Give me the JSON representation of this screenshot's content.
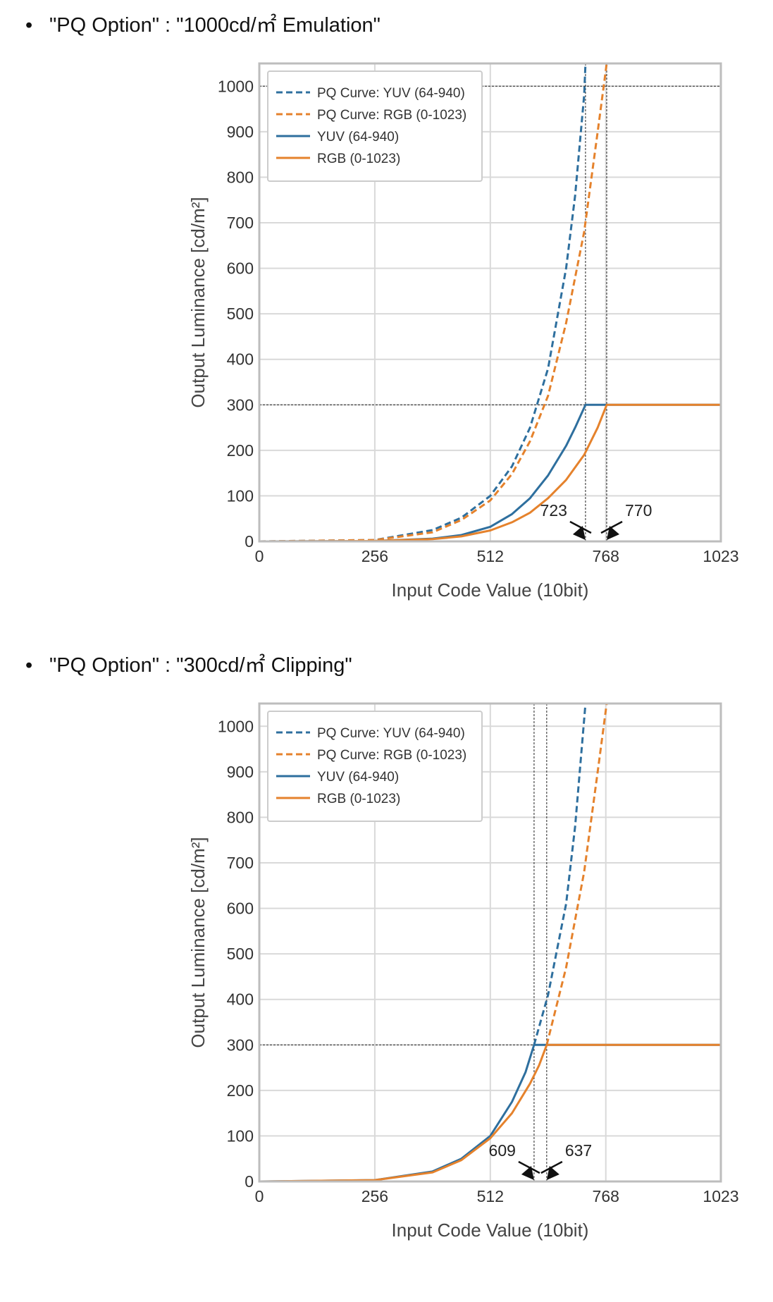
{
  "sections": [
    {
      "bullet": "•",
      "heading": "\"PQ Option\" : \"1000cd/㎡ Emulation\"",
      "chart_data": {
        "type": "line",
        "xlabel": "Input Code Value (10bit)",
        "ylabel": "Output Luminance [cd/m²]",
        "xlim": [
          0,
          1023
        ],
        "ylim": [
          0,
          1050
        ],
        "xticks": [
          0,
          256,
          512,
          768,
          1023
        ],
        "yticks": [
          0,
          100,
          200,
          300,
          400,
          500,
          600,
          700,
          800,
          900,
          1000
        ],
        "grid": true,
        "legend": "top-left",
        "series": [
          {
            "name": "PQ Curve: YUV (64-940)",
            "style": "dashed",
            "color": "#2e6f9e",
            "x": [
              0,
              256,
              384,
              448,
              512,
              560,
              600,
              640,
              680,
              700,
              720,
              723
            ],
            "y": [
              0,
              3,
              25,
              52,
              100,
              165,
              250,
              380,
              600,
              760,
              980,
              1050
            ]
          },
          {
            "name": "PQ Curve: RGB (0-1023)",
            "style": "dashed",
            "color": "#e5822c",
            "x": [
              0,
              256,
              384,
              448,
              512,
              560,
              600,
              640,
              680,
              720,
              750,
              770
            ],
            "y": [
              0,
              3,
              20,
              47,
              90,
              148,
              220,
              320,
              480,
              680,
              900,
              1050
            ]
          },
          {
            "name": "YUV (64-940)",
            "style": "solid",
            "color": "#2e6f9e",
            "x": [
              0,
              256,
              384,
              448,
              512,
              560,
              600,
              640,
              680,
              700,
              723,
              770,
              1023
            ],
            "y": [
              0,
              1,
              6,
              14,
              32,
              60,
              95,
              145,
              210,
              250,
              300,
              300,
              300
            ]
          },
          {
            "name": "RGB (0-1023)",
            "style": "solid",
            "color": "#e5822c",
            "x": [
              0,
              256,
              384,
              448,
              512,
              560,
              600,
              640,
              680,
              720,
              750,
              770,
              1023
            ],
            "y": [
              0,
              1,
              5,
              11,
              24,
              42,
              63,
              95,
              135,
              190,
              250,
              300,
              300
            ]
          }
        ],
        "reference_lines": {
          "h": [
            1000,
            300
          ],
          "v": [
            723,
            770
          ]
        },
        "annotations": [
          {
            "text": "723",
            "x": 723
          },
          {
            "text": "770",
            "x": 770
          }
        ]
      }
    },
    {
      "bullet": "•",
      "heading": "\"PQ Option\" : \"300cd/㎡ Clipping\"",
      "chart_data": {
        "type": "line",
        "xlabel": "Input Code Value (10bit)",
        "ylabel": "Output Luminance [cd/m²]",
        "xlim": [
          0,
          1023
        ],
        "ylim": [
          0,
          1050
        ],
        "xticks": [
          0,
          256,
          512,
          768,
          1023
        ],
        "yticks": [
          0,
          100,
          200,
          300,
          400,
          500,
          600,
          700,
          800,
          900,
          1000
        ],
        "grid": true,
        "legend": "top-left",
        "series": [
          {
            "name": "PQ Curve: YUV (64-940)",
            "style": "dashed",
            "color": "#2e6f9e",
            "x": [
              609,
              640,
              680,
              700,
              723
            ],
            "y": [
              300,
              410,
              610,
              780,
              1050
            ]
          },
          {
            "name": "PQ Curve: RGB (0-1023)",
            "style": "dashed",
            "color": "#e5822c",
            "x": [
              637,
              680,
              720,
              750,
              770
            ],
            "y": [
              300,
              470,
              680,
              900,
              1050
            ]
          },
          {
            "name": "YUV (64-940)",
            "style": "solid",
            "color": "#2e6f9e",
            "x": [
              0,
              256,
              384,
              448,
              512,
              560,
              590,
              609,
              637,
              1023
            ],
            "y": [
              0,
              3,
              22,
              50,
              100,
              175,
              240,
              300,
              300,
              300
            ]
          },
          {
            "name": "RGB (0-1023)",
            "style": "solid",
            "color": "#e5822c",
            "x": [
              0,
              256,
              384,
              448,
              512,
              560,
              600,
              620,
              637,
              1023
            ],
            "y": [
              0,
              3,
              20,
              47,
              95,
              150,
              215,
              255,
              300,
              300
            ]
          }
        ],
        "reference_lines": {
          "h": [
            300
          ],
          "v": [
            609,
            637
          ]
        },
        "annotations": [
          {
            "text": "609",
            "x": 609
          },
          {
            "text": "637",
            "x": 637
          }
        ]
      }
    }
  ]
}
